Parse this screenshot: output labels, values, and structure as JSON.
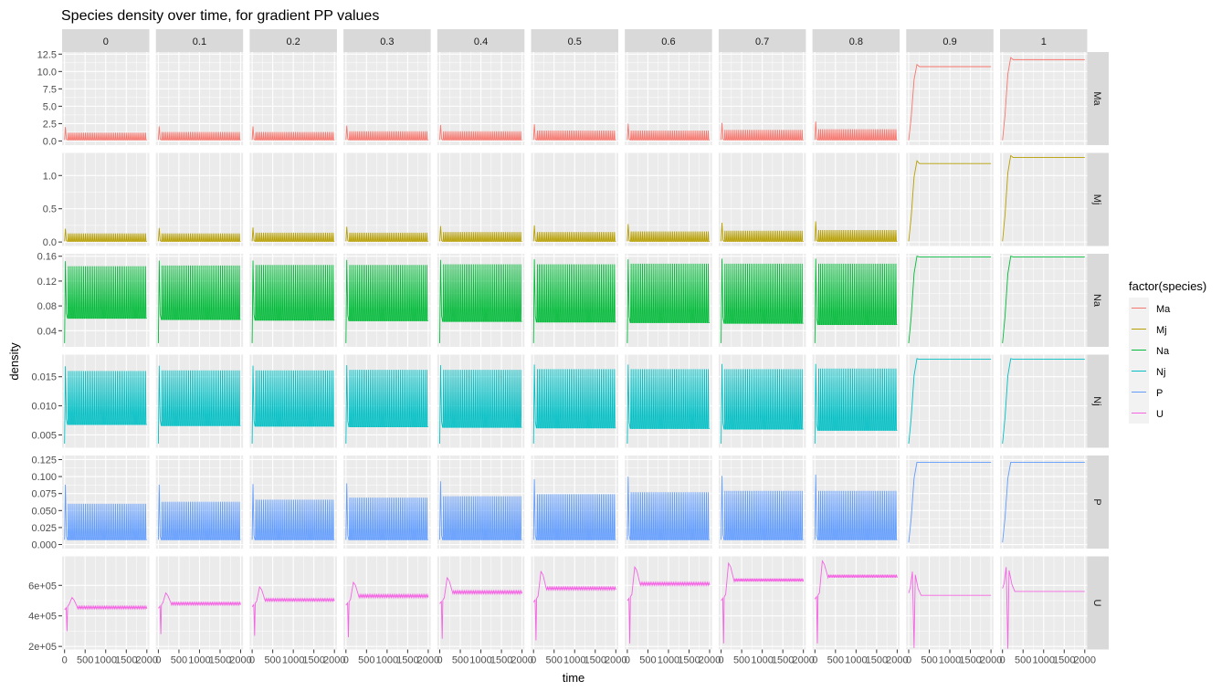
{
  "chart_data": {
    "type": "line",
    "title": "Species density over time, for gradient PP values",
    "xlabel": "time",
    "ylabel": "density",
    "facet_cols": [
      "0",
      "0.1",
      "0.2",
      "0.3",
      "0.4",
      "0.5",
      "0.6",
      "0.7",
      "0.8",
      "0.9",
      "1"
    ],
    "facet_rows": [
      "Ma",
      "Mj",
      "Na",
      "Nj",
      "P",
      "U"
    ],
    "x_range": [
      0,
      2000
    ],
    "x_ticks": [
      0,
      500,
      1000,
      1500,
      2000
    ],
    "x_tick_labels": [
      "0",
      "500",
      "1000",
      "1500",
      "2000"
    ],
    "legend": {
      "title": "factor(species)",
      "position": "right",
      "entries": [
        "Ma",
        "Mj",
        "Na",
        "Nj",
        "P",
        "U"
      ]
    },
    "colors": {
      "Ma": "#F8766D",
      "Mj": "#B79F00",
      "Na": "#00BA38",
      "Nj": "#00BFC4",
      "P": "#619CFF",
      "U": "#F564E3"
    },
    "rows": [
      {
        "species": "Ma",
        "ylim": [
          -0.6,
          12.8
        ],
        "y_ticks": [
          0,
          2.5,
          5,
          7.5,
          10,
          12.5
        ],
        "y_tick_labels": [
          "0.0",
          "2.5",
          "5.0",
          "7.5",
          "10.0",
          "12.5"
        ],
        "series": [
          {
            "pp": "0",
            "kind": "osc",
            "low": 0.15,
            "high": 1.2,
            "peak": 2.0,
            "cycles": 42
          },
          {
            "pp": "0.1",
            "kind": "osc",
            "low": 0.15,
            "high": 1.3,
            "peak": 2.1,
            "cycles": 42
          },
          {
            "pp": "0.2",
            "kind": "osc",
            "low": 0.15,
            "high": 1.3,
            "peak": 2.1,
            "cycles": 42
          },
          {
            "pp": "0.3",
            "kind": "osc",
            "low": 0.15,
            "high": 1.4,
            "peak": 2.2,
            "cycles": 42
          },
          {
            "pp": "0.4",
            "kind": "osc",
            "low": 0.15,
            "high": 1.4,
            "peak": 2.3,
            "cycles": 42
          },
          {
            "pp": "0.5",
            "kind": "osc",
            "low": 0.15,
            "high": 1.5,
            "peak": 2.4,
            "cycles": 42
          },
          {
            "pp": "0.6",
            "kind": "osc",
            "low": 0.15,
            "high": 1.5,
            "peak": 2.5,
            "cycles": 42
          },
          {
            "pp": "0.7",
            "kind": "osc",
            "low": 0.15,
            "high": 1.6,
            "peak": 2.6,
            "cycles": 42
          },
          {
            "pp": "0.8",
            "kind": "osc",
            "low": 0.15,
            "high": 1.7,
            "peak": 2.8,
            "cycles": 42
          },
          {
            "pp": "0.9",
            "kind": "step",
            "start": 0.1,
            "overshoot": 11.0,
            "steady": 10.7
          },
          {
            "pp": "1",
            "kind": "step",
            "start": 0.1,
            "overshoot": 12.0,
            "steady": 11.7
          }
        ]
      },
      {
        "species": "Mj",
        "ylim": [
          -0.06,
          1.34
        ],
        "y_ticks": [
          0,
          0.5,
          1.0
        ],
        "y_tick_labels": [
          "0.0",
          "0.5",
          "1.0"
        ],
        "series": [
          {
            "pp": "0",
            "kind": "osc",
            "low": 0.01,
            "high": 0.13,
            "peak": 0.2,
            "cycles": 42
          },
          {
            "pp": "0.1",
            "kind": "osc",
            "low": 0.01,
            "high": 0.13,
            "peak": 0.21,
            "cycles": 42
          },
          {
            "pp": "0.2",
            "kind": "osc",
            "low": 0.01,
            "high": 0.14,
            "peak": 0.22,
            "cycles": 42
          },
          {
            "pp": "0.3",
            "kind": "osc",
            "low": 0.01,
            "high": 0.14,
            "peak": 0.23,
            "cycles": 42
          },
          {
            "pp": "0.4",
            "kind": "osc",
            "low": 0.01,
            "high": 0.15,
            "peak": 0.24,
            "cycles": 42
          },
          {
            "pp": "0.5",
            "kind": "osc",
            "low": 0.01,
            "high": 0.15,
            "peak": 0.25,
            "cycles": 42
          },
          {
            "pp": "0.6",
            "kind": "osc",
            "low": 0.01,
            "high": 0.16,
            "peak": 0.27,
            "cycles": 42
          },
          {
            "pp": "0.7",
            "kind": "osc",
            "low": 0.01,
            "high": 0.17,
            "peak": 0.29,
            "cycles": 42
          },
          {
            "pp": "0.8",
            "kind": "osc",
            "low": 0.01,
            "high": 0.18,
            "peak": 0.31,
            "cycles": 42
          },
          {
            "pp": "0.9",
            "kind": "step",
            "start": 0.01,
            "overshoot": 1.22,
            "steady": 1.18
          },
          {
            "pp": "1",
            "kind": "step",
            "start": 0.01,
            "overshoot": 1.3,
            "steady": 1.27
          }
        ]
      },
      {
        "species": "Na",
        "ylim": [
          0.014,
          0.164
        ],
        "y_ticks": [
          0.04,
          0.08,
          0.12,
          0.16
        ],
        "y_tick_labels": [
          "0.04",
          "0.08",
          "0.12",
          "0.16"
        ],
        "series": [
          {
            "pp": "0",
            "kind": "osc",
            "low": 0.06,
            "high": 0.144,
            "start": 0.02,
            "peak": 0.152,
            "cycles": 42
          },
          {
            "pp": "0.1",
            "kind": "osc",
            "low": 0.058,
            "high": 0.145,
            "start": 0.02,
            "peak": 0.153,
            "cycles": 42
          },
          {
            "pp": "0.2",
            "kind": "osc",
            "low": 0.057,
            "high": 0.146,
            "start": 0.02,
            "peak": 0.153,
            "cycles": 42
          },
          {
            "pp": "0.3",
            "kind": "osc",
            "low": 0.056,
            "high": 0.146,
            "start": 0.02,
            "peak": 0.154,
            "cycles": 42
          },
          {
            "pp": "0.4",
            "kind": "osc",
            "low": 0.055,
            "high": 0.147,
            "start": 0.02,
            "peak": 0.154,
            "cycles": 42
          },
          {
            "pp": "0.5",
            "kind": "osc",
            "low": 0.054,
            "high": 0.147,
            "start": 0.02,
            "peak": 0.155,
            "cycles": 42
          },
          {
            "pp": "0.6",
            "kind": "osc",
            "low": 0.053,
            "high": 0.148,
            "start": 0.02,
            "peak": 0.155,
            "cycles": 42
          },
          {
            "pp": "0.7",
            "kind": "osc",
            "low": 0.052,
            "high": 0.148,
            "start": 0.02,
            "peak": 0.156,
            "cycles": 42
          },
          {
            "pp": "0.8",
            "kind": "osc",
            "low": 0.05,
            "high": 0.148,
            "start": 0.02,
            "peak": 0.156,
            "cycles": 42
          },
          {
            "pp": "0.9",
            "kind": "step",
            "start": 0.02,
            "overshoot": 0.16,
            "steady": 0.159
          },
          {
            "pp": "1",
            "kind": "step",
            "start": 0.02,
            "overshoot": 0.16,
            "steady": 0.159
          }
        ]
      },
      {
        "species": "Nj",
        "ylim": [
          0.0028,
          0.0188
        ],
        "y_ticks": [
          0.005,
          0.01,
          0.015
        ],
        "y_tick_labels": [
          "0.005",
          "0.010",
          "0.015"
        ],
        "series": [
          {
            "pp": "0",
            "kind": "osc",
            "low": 0.0068,
            "high": 0.016,
            "start": 0.0035,
            "peak": 0.0168,
            "cycles": 42
          },
          {
            "pp": "0.1",
            "kind": "osc",
            "low": 0.0066,
            "high": 0.0161,
            "start": 0.0035,
            "peak": 0.0169,
            "cycles": 42
          },
          {
            "pp": "0.2",
            "kind": "osc",
            "low": 0.0065,
            "high": 0.0161,
            "start": 0.0035,
            "peak": 0.0169,
            "cycles": 42
          },
          {
            "pp": "0.3",
            "kind": "osc",
            "low": 0.0064,
            "high": 0.0162,
            "start": 0.0035,
            "peak": 0.017,
            "cycles": 42
          },
          {
            "pp": "0.4",
            "kind": "osc",
            "low": 0.0063,
            "high": 0.0162,
            "start": 0.0035,
            "peak": 0.017,
            "cycles": 42
          },
          {
            "pp": "0.5",
            "kind": "osc",
            "low": 0.0062,
            "high": 0.0163,
            "start": 0.0035,
            "peak": 0.0171,
            "cycles": 42
          },
          {
            "pp": "0.6",
            "kind": "osc",
            "low": 0.0061,
            "high": 0.0163,
            "start": 0.0035,
            "peak": 0.0171,
            "cycles": 42
          },
          {
            "pp": "0.7",
            "kind": "osc",
            "low": 0.006,
            "high": 0.0163,
            "start": 0.0035,
            "peak": 0.0172,
            "cycles": 42
          },
          {
            "pp": "0.8",
            "kind": "osc",
            "low": 0.0058,
            "high": 0.0164,
            "start": 0.0035,
            "peak": 0.0172,
            "cycles": 42
          },
          {
            "pp": "0.9",
            "kind": "step",
            "start": 0.0035,
            "overshoot": 0.0181,
            "steady": 0.018
          },
          {
            "pp": "1",
            "kind": "step",
            "start": 0.0035,
            "overshoot": 0.0181,
            "steady": 0.018
          }
        ]
      },
      {
        "species": "P",
        "ylim": [
          -0.006,
          0.131
        ],
        "y_ticks": [
          0,
          0.025,
          0.05,
          0.075,
          0.1,
          0.125
        ],
        "y_tick_labels": [
          "0.000",
          "0.025",
          "0.050",
          "0.075",
          "0.100",
          "0.125"
        ],
        "series": [
          {
            "pp": "0",
            "kind": "osc",
            "low": 0.007,
            "high": 0.06,
            "peak": 0.088,
            "cycles": 42
          },
          {
            "pp": "0.1",
            "kind": "osc",
            "low": 0.007,
            "high": 0.063,
            "peak": 0.088,
            "cycles": 42
          },
          {
            "pp": "0.2",
            "kind": "osc",
            "low": 0.007,
            "high": 0.066,
            "peak": 0.089,
            "cycles": 42
          },
          {
            "pp": "0.3",
            "kind": "osc",
            "low": 0.007,
            "high": 0.069,
            "peak": 0.09,
            "cycles": 42
          },
          {
            "pp": "0.4",
            "kind": "osc",
            "low": 0.007,
            "high": 0.071,
            "peak": 0.093,
            "cycles": 42
          },
          {
            "pp": "0.5",
            "kind": "osc",
            "low": 0.007,
            "high": 0.074,
            "peak": 0.096,
            "cycles": 42
          },
          {
            "pp": "0.6",
            "kind": "osc",
            "low": 0.007,
            "high": 0.077,
            "peak": 0.1,
            "cycles": 42
          },
          {
            "pp": "0.7",
            "kind": "osc",
            "low": 0.007,
            "high": 0.079,
            "peak": 0.101,
            "cycles": 42
          },
          {
            "pp": "0.8",
            "kind": "osc",
            "low": 0.007,
            "high": 0.079,
            "peak": 0.103,
            "cycles": 42
          },
          {
            "pp": "0.9",
            "kind": "step",
            "start": 0.003,
            "overshoot": 0.121,
            "steady": 0.121
          },
          {
            "pp": "1",
            "kind": "step",
            "start": 0.003,
            "overshoot": 0.121,
            "steady": 0.121
          }
        ]
      },
      {
        "species": "U",
        "ylim": [
          180000,
          790000
        ],
        "y_ticks": [
          200000,
          400000,
          600000
        ],
        "y_tick_labels": [
          "2e+05",
          "4e+05",
          "6e+05"
        ],
        "series": [
          {
            "pp": "0",
            "kind": "uosc",
            "steady": 455000,
            "amp": 8000,
            "peak": 520000,
            "dip": 300000,
            "early": 440000
          },
          {
            "pp": "0.1",
            "kind": "uosc",
            "steady": 480000,
            "amp": 8000,
            "peak": 550000,
            "dip": 280000,
            "early": 450000
          },
          {
            "pp": "0.2",
            "kind": "uosc",
            "steady": 505000,
            "amp": 8000,
            "peak": 590000,
            "dip": 270000,
            "early": 460000
          },
          {
            "pp": "0.3",
            "kind": "uosc",
            "steady": 530000,
            "amp": 9000,
            "peak": 620000,
            "dip": 260000,
            "early": 470000
          },
          {
            "pp": "0.4",
            "kind": "uosc",
            "steady": 555000,
            "amp": 9000,
            "peak": 650000,
            "dip": 250000,
            "early": 480000
          },
          {
            "pp": "0.5",
            "kind": "uosc",
            "steady": 580000,
            "amp": 9000,
            "peak": 690000,
            "dip": 240000,
            "early": 490000
          },
          {
            "pp": "0.6",
            "kind": "uosc",
            "steady": 610000,
            "amp": 9000,
            "peak": 720000,
            "dip": 220000,
            "early": 500000
          },
          {
            "pp": "0.7",
            "kind": "uosc",
            "steady": 635000,
            "amp": 10000,
            "peak": 745000,
            "dip": 220000,
            "early": 500000
          },
          {
            "pp": "0.8",
            "kind": "uosc",
            "steady": 660000,
            "amp": 10000,
            "peak": 760000,
            "dip": 220000,
            "early": 510000
          },
          {
            "pp": "0.9",
            "kind": "ustep",
            "steady": 535000,
            "peak": 690000,
            "dip": 190000,
            "early": 550000
          },
          {
            "pp": "1",
            "kind": "ustep",
            "steady": 560000,
            "peak": 720000,
            "dip": 185000,
            "early": 580000
          }
        ]
      }
    ]
  }
}
